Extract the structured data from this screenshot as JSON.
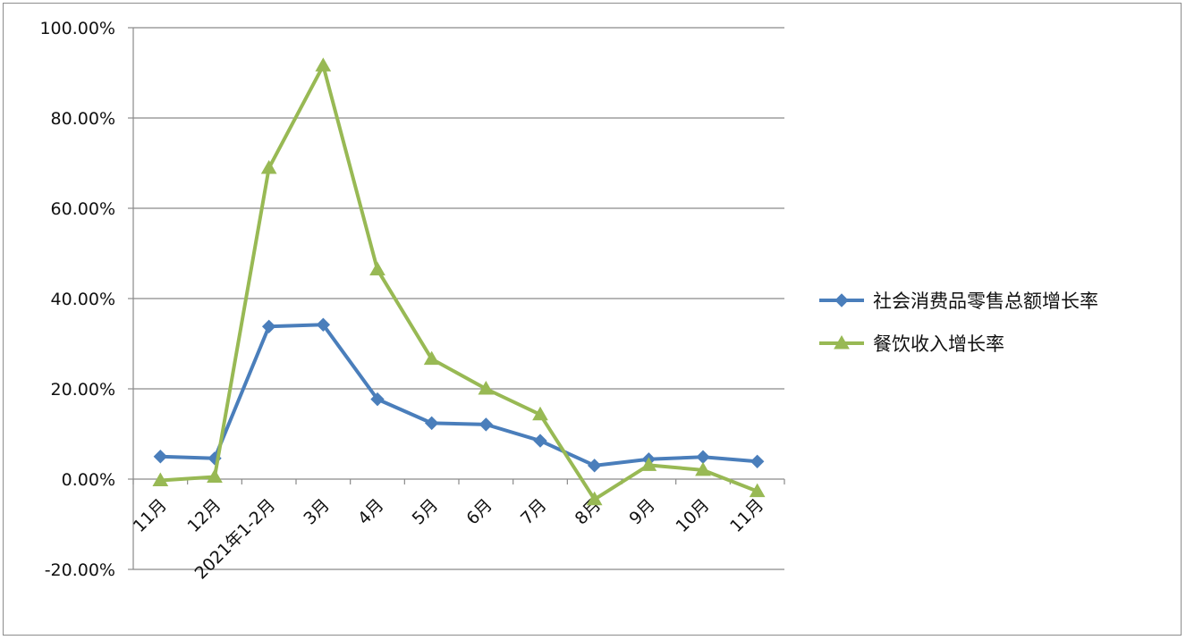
{
  "chart_data": {
    "type": "line",
    "categories": [
      "11月",
      "12月",
      "2021年1-2月",
      "3月",
      "4月",
      "5月",
      "6月",
      "7月",
      "8月",
      "9月",
      "10月",
      "11月"
    ],
    "series": [
      {
        "name": "社会消费品零售总额增长率",
        "color": "#4a7ebb",
        "marker": "diamond",
        "values": [
          5.0,
          4.6,
          33.8,
          34.2,
          17.7,
          12.4,
          12.1,
          8.5,
          3.0,
          4.4,
          4.9,
          3.9
        ]
      },
      {
        "name": "餐饮收入增长率",
        "color": "#98b954",
        "marker": "triangle",
        "values": [
          -0.3,
          0.5,
          68.9,
          91.6,
          46.4,
          26.6,
          20.0,
          14.3,
          -4.5,
          3.1,
          2.0,
          -2.7
        ]
      }
    ],
    "yticks": [
      "100.00%",
      "80.00%",
      "60.00%",
      "40.00%",
      "20.00%",
      "0.00%",
      "-20.00%"
    ],
    "ylim": [
      -20,
      100
    ],
    "grid": true,
    "legend_position": "right"
  }
}
